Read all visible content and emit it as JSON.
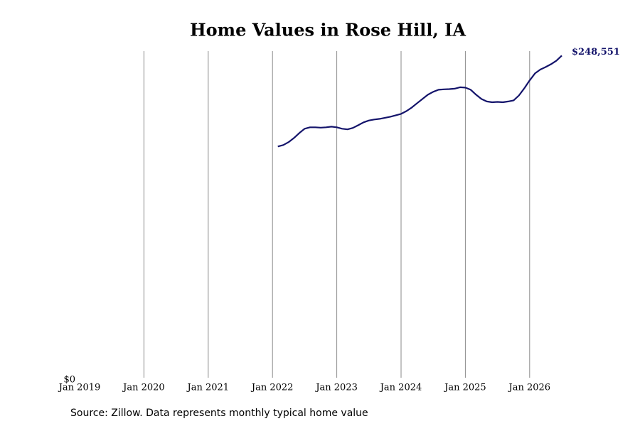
{
  "chart_data": {
    "type": "line",
    "title": "Home Values in Rose Hill, IA",
    "source": "Source: Zillow. Data represents monthly typical home value",
    "x": [
      "2022-02",
      "2022-03",
      "2022-04",
      "2022-05",
      "2022-06",
      "2022-07",
      "2022-08",
      "2022-09",
      "2022-10",
      "2022-11",
      "2022-12",
      "2023-01",
      "2023-02",
      "2023-03",
      "2023-04",
      "2023-05",
      "2023-06",
      "2023-07",
      "2023-08",
      "2023-09",
      "2023-10",
      "2023-11",
      "2023-12",
      "2024-01",
      "2024-02",
      "2024-03",
      "2024-04",
      "2024-05",
      "2024-06",
      "2024-07",
      "2024-08",
      "2024-09",
      "2024-10",
      "2024-11",
      "2024-12",
      "2025-01",
      "2025-02",
      "2025-03",
      "2025-04",
      "2025-05",
      "2025-06",
      "2025-07",
      "2025-08",
      "2025-09",
      "2025-10",
      "2025-11",
      "2025-12",
      "2026-01",
      "2026-02",
      "2026-03",
      "2026-04",
      "2026-05",
      "2026-06",
      "2026-07"
    ],
    "series": [
      {
        "name": "Typical home value",
        "color": "#14146b",
        "values": [
          178900,
          180000,
          182200,
          185400,
          189200,
          192500,
          193600,
          193600,
          193300,
          193600,
          194100,
          193600,
          192500,
          192000,
          193100,
          195200,
          197400,
          198800,
          199600,
          200100,
          200900,
          201700,
          202800,
          203900,
          206000,
          208800,
          212100,
          215300,
          218600,
          220800,
          222400,
          222700,
          222900,
          223200,
          224300,
          224000,
          222400,
          218600,
          215300,
          213400,
          212800,
          213100,
          212800,
          213400,
          214200,
          218000,
          223500,
          229500,
          234900,
          237900,
          239800,
          242000,
          244700,
          248551
        ],
        "value_labels": [
          null,
          null,
          null,
          null,
          null,
          null,
          null,
          null,
          null,
          null,
          null,
          null,
          null,
          null,
          null,
          null,
          null,
          null,
          null,
          null,
          null,
          null,
          null,
          null,
          null,
          null,
          null,
          null,
          null,
          null,
          null,
          null,
          null,
          null,
          null,
          null,
          null,
          null,
          null,
          null,
          null,
          null,
          null,
          null,
          null,
          null,
          null,
          null,
          null,
          null,
          null,
          null,
          null,
          "$248,551"
        ]
      }
    ],
    "xlim": [
      "2019-01",
      "2026-07"
    ],
    "xticks": [
      {
        "value": "2019-01",
        "label": "Jan 2019"
      },
      {
        "value": "2020-01",
        "label": "Jan 2020"
      },
      {
        "value": "2021-01",
        "label": "Jan 2021"
      },
      {
        "value": "2022-01",
        "label": "Jan 2022"
      },
      {
        "value": "2023-01",
        "label": "Jan 2023"
      },
      {
        "value": "2024-01",
        "label": "Jan 2024"
      },
      {
        "value": "2025-01",
        "label": "Jan 2025"
      },
      {
        "value": "2026-01",
        "label": "Jan 2026"
      }
    ],
    "ylim": [
      0,
      252000
    ],
    "yticks": [
      {
        "value": 0,
        "label": "$0"
      }
    ],
    "grid": true
  }
}
